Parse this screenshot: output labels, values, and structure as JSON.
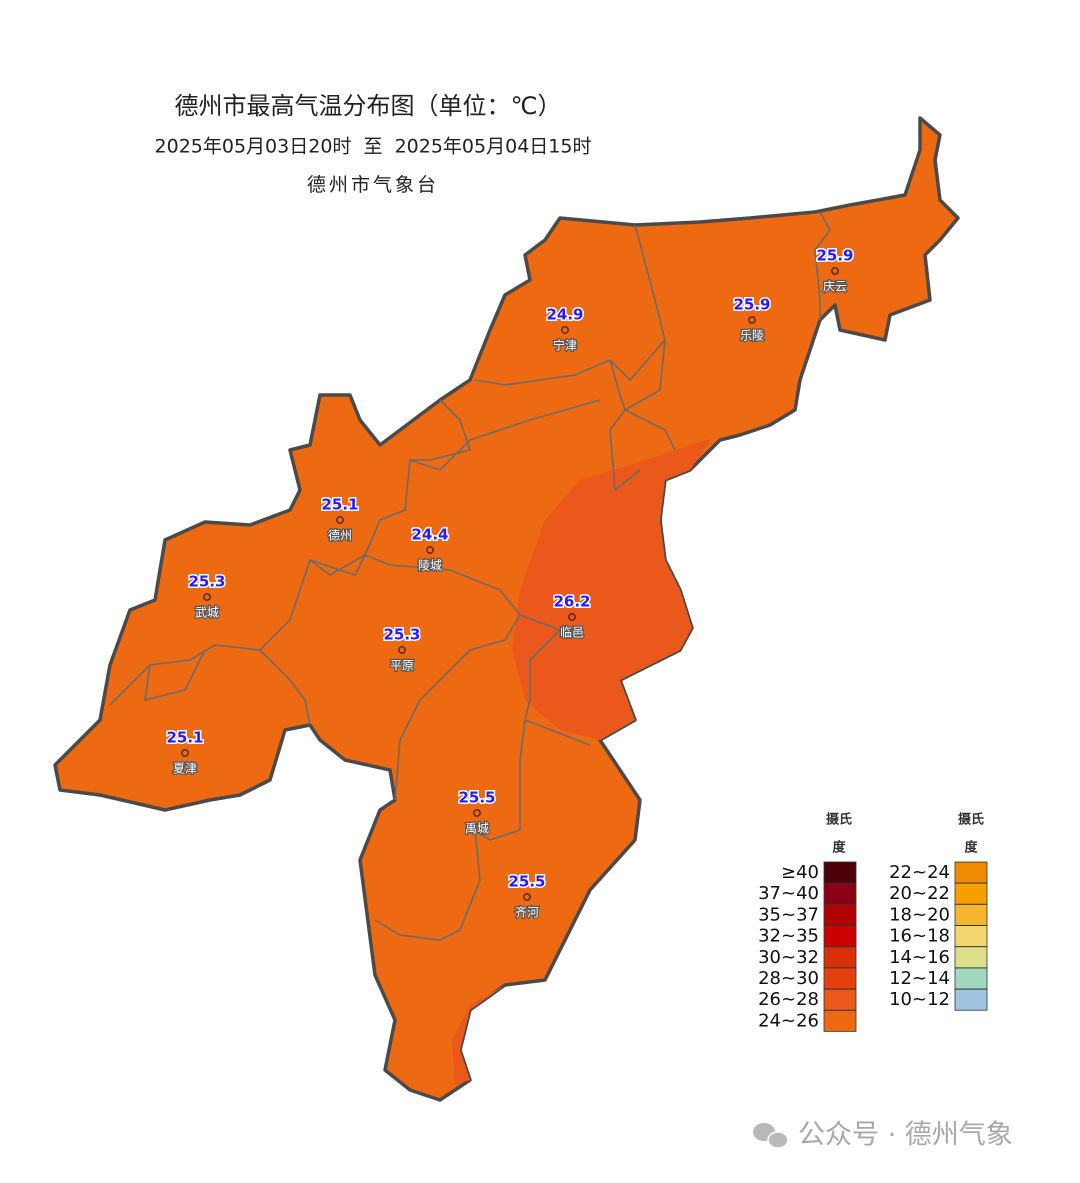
{
  "header": {
    "title": "德州市最高气温分布图（单位：℃）",
    "period": "2025年05月03日20时  至  2025年05月04日15时",
    "source": "德州市气象台"
  },
  "stations": [
    {
      "name": "庆云",
      "value": 25.9
    },
    {
      "name": "乐陵",
      "value": 25.9
    },
    {
      "name": "宁津",
      "value": 24.9
    },
    {
      "name": "德州",
      "value": 25.1
    },
    {
      "name": "陵城",
      "value": 24.4
    },
    {
      "name": "武城",
      "value": 25.3
    },
    {
      "name": "临邑",
      "value": 26.2
    },
    {
      "name": "平原",
      "value": 25.3
    },
    {
      "name": "夏津",
      "value": 25.1
    },
    {
      "name": "禹城",
      "value": 25.5
    },
    {
      "name": "齐河",
      "value": 25.5
    }
  ],
  "legend": {
    "columns": [
      {
        "header": [
          "摄氏",
          "度"
        ],
        "entries": [
          {
            "label": "≥40",
            "color": "#4d0005"
          },
          {
            "label": "37~40",
            "color": "#8b0014"
          },
          {
            "label": "35~37",
            "color": "#b00000"
          },
          {
            "label": "32~35",
            "color": "#cc0000"
          },
          {
            "label": "30~32",
            "color": "#d8300a"
          },
          {
            "label": "28~30",
            "color": "#e2400e"
          },
          {
            "label": "26~28",
            "color": "#ea581b"
          },
          {
            "label": "24~26",
            "color": "#ee6a12"
          }
        ]
      },
      {
        "header": [
          "摄氏",
          "度"
        ],
        "entries": [
          {
            "label": "22~24",
            "color": "#f08a00"
          },
          {
            "label": "20~22",
            "color": "#f59f00"
          },
          {
            "label": "18~20",
            "color": "#f8b630"
          },
          {
            "label": "16~18",
            "color": "#f4d66e"
          },
          {
            "label": "14~16",
            "color": "#dce08a"
          },
          {
            "label": "12~14",
            "color": "#a0d8c0"
          },
          {
            "label": "10~12",
            "color": "#a0c4e0"
          }
        ]
      }
    ]
  },
  "watermark": "公众号 · 德州气象"
}
